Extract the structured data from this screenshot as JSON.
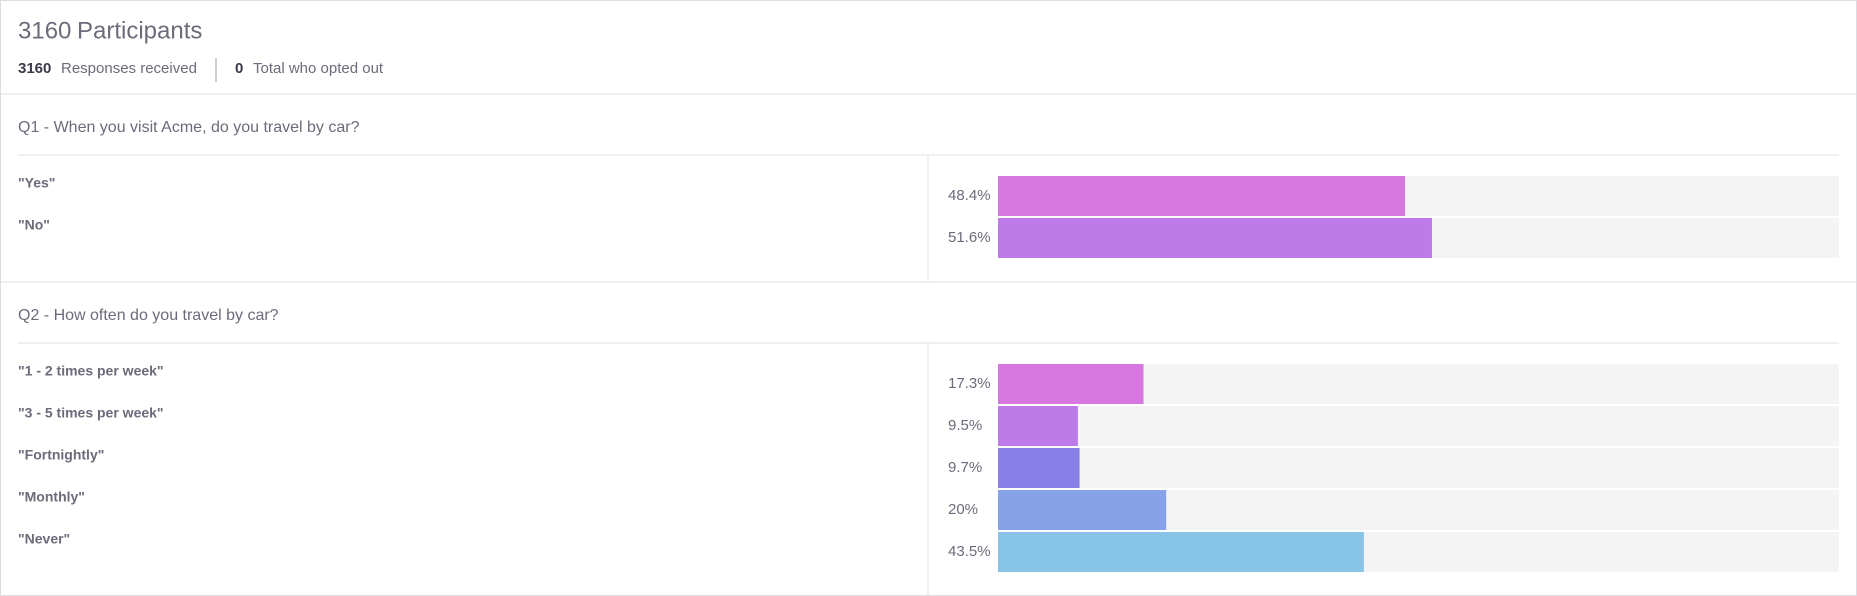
{
  "header": {
    "participants": 3160,
    "participants_label": "Participants",
    "responses": 3160,
    "responses_label": "Responses received",
    "opted_out": 0,
    "opted_out_label": "Total who opted out"
  },
  "xlim": [
    0,
    100
  ],
  "questions": [
    {
      "title": "Q1 - When you visit Acme, do you travel by car?",
      "options": [
        "\"Yes\"",
        "\"No\""
      ],
      "values": [
        48.4,
        51.6
      ],
      "value_labels": [
        "48.4%",
        "51.6%"
      ],
      "colors": [
        "#d977e0",
        "#bc7be8"
      ]
    },
    {
      "title": "Q2 - How often do you travel by car?",
      "options": [
        "\"1 - 2 times per week\"",
        "\"3 - 5 times per week\"",
        "\"Fortnightly\"",
        "\"Monthly\"",
        "\"Never\""
      ],
      "values": [
        17.3,
        9.5,
        9.7,
        20,
        43.5
      ],
      "value_labels": [
        "17.3%",
        "9.5%",
        "9.7%",
        "20%",
        "43.5%"
      ],
      "colors": [
        "#d977e0",
        "#bc7be8",
        "#8a7fe6",
        "#87a2e8",
        "#87c4e8"
      ]
    }
  ]
}
